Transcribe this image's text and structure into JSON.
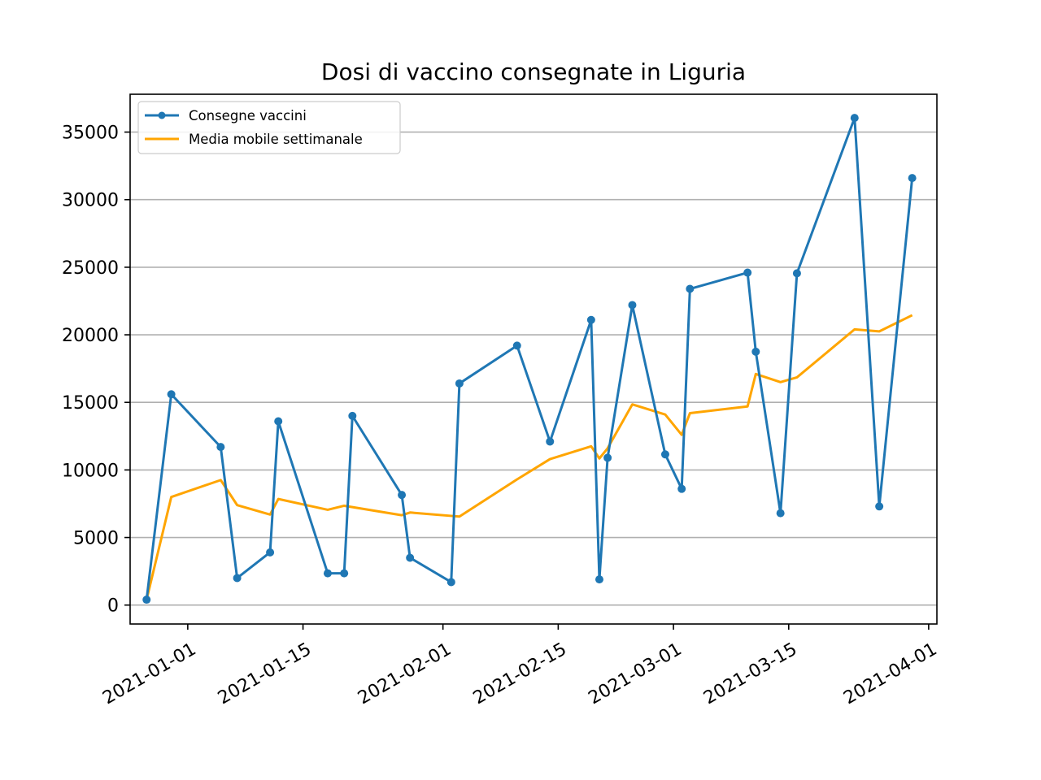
{
  "chart_data": {
    "type": "line",
    "title": "Dosi di vaccino consegnate in Liguria",
    "xlabel": "",
    "ylabel": "",
    "x_axis_type": "date",
    "xlim": [
      "2020-12-25",
      "2021-04-02"
    ],
    "ylim": [
      -1400,
      37800
    ],
    "x_ticks": [
      "2021-01-01",
      "2021-01-15",
      "2021-02-01",
      "2021-02-15",
      "2021-03-01",
      "2021-03-15",
      "2021-04-01"
    ],
    "y_ticks": [
      0,
      5000,
      10000,
      15000,
      20000,
      25000,
      30000,
      35000
    ],
    "grid": "horizontal",
    "legend_position": "top-left",
    "series": [
      {
        "name": "Consegne vaccini",
        "color": "#1f77b4",
        "marker": "circle",
        "x": [
          "2020-12-27",
          "2020-12-30",
          "2021-01-05",
          "2021-01-07",
          "2021-01-11",
          "2021-01-12",
          "2021-01-18",
          "2021-01-20",
          "2021-01-21",
          "2021-01-27",
          "2021-01-28",
          "2021-02-02",
          "2021-02-03",
          "2021-02-10",
          "2021-02-14",
          "2021-02-19",
          "2021-02-20",
          "2021-02-21",
          "2021-02-24",
          "2021-02-28",
          "2021-03-02",
          "2021-03-03",
          "2021-03-10",
          "2021-03-11",
          "2021-03-14",
          "2021-03-16",
          "2021-03-23",
          "2021-03-26",
          "2021-03-30"
        ],
        "values": [
          400,
          15600,
          11700,
          2000,
          3900,
          13600,
          2350,
          2350,
          14000,
          8150,
          3500,
          1700,
          16400,
          19200,
          12100,
          21100,
          1900,
          10900,
          22200,
          11150,
          8600,
          23400,
          24600,
          18750,
          6800,
          24550,
          36050,
          7300,
          31600
        ]
      },
      {
        "name": "Media mobile settimanale",
        "color": "#ffa500",
        "marker": "none",
        "x": [
          "2020-12-27",
          "2020-12-30",
          "2021-01-05",
          "2021-01-07",
          "2021-01-11",
          "2021-01-12",
          "2021-01-18",
          "2021-01-20",
          "2021-01-21",
          "2021-01-27",
          "2021-01-28",
          "2021-02-02",
          "2021-02-03",
          "2021-02-10",
          "2021-02-14",
          "2021-02-19",
          "2021-02-20",
          "2021-02-21",
          "2021-02-24",
          "2021-02-28",
          "2021-03-02",
          "2021-03-03",
          "2021-03-10",
          "2021-03-11",
          "2021-03-14",
          "2021-03-16",
          "2021-03-23",
          "2021-03-26",
          "2021-03-30"
        ],
        "values": [
          400,
          8000,
          9250,
          7400,
          6700,
          7850,
          7050,
          7350,
          7250,
          6650,
          6850,
          6600,
          6550,
          9300,
          10800,
          11750,
          10850,
          11600,
          14850,
          14100,
          12600,
          14200,
          14700,
          17100,
          16500,
          16850,
          20400,
          20250,
          21450
        ]
      }
    ]
  }
}
